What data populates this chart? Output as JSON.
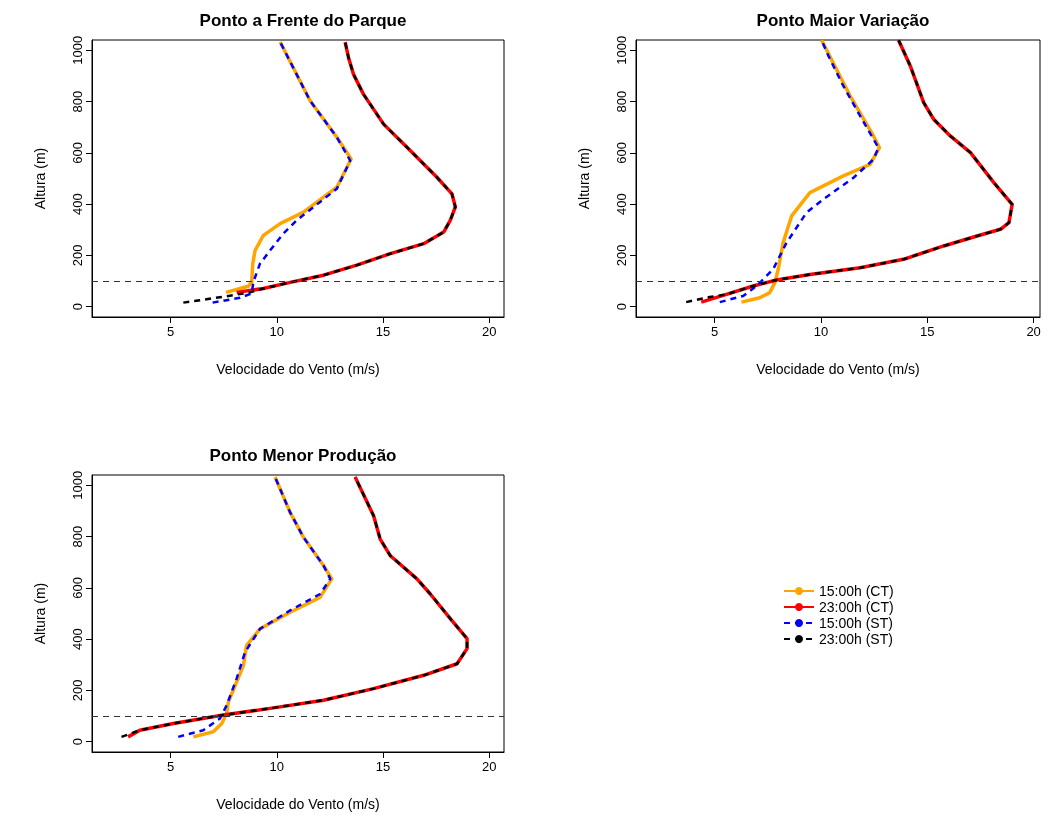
{
  "chart_data": [
    {
      "type": "line",
      "title": "Ponto a Frente do Parque",
      "xlabel": "Velocidade do Vento (m/s)",
      "ylabel": "Altura (m)",
      "xlim": [
        1.3,
        20.7
      ],
      "xticks": [
        5,
        10,
        15,
        20
      ],
      "ylim": [
        -40,
        1040
      ],
      "yticks": [
        0,
        200,
        400,
        600,
        800,
        1000
      ],
      "grid": false,
      "legend": false,
      "ref_lines": [
        {
          "axis": "y",
          "value": 100,
          "color": "#333333",
          "line_style": "dashed"
        }
      ],
      "series": [
        {
          "color": "#ffa500",
          "line_style": "solid",
          "x": [
            7.61,
            8.66,
            8.82,
            8.87,
            8.98,
            9.37,
            10.16,
            11.26,
            12.83,
            13.5,
            12.83,
            11.57,
            10.16
          ],
          "values": [
            56,
            80,
            97,
            168,
            220,
            278,
            324,
            369,
            466,
            576,
            661,
            803,
            1032
          ]
        },
        {
          "color": "#ff0000",
          "line_style": "solid",
          "x": [
            8.11,
            9.37,
            10.63,
            12.2,
            13.77,
            15.35,
            16.92,
            17.86,
            18.17,
            18.41,
            18.25,
            17.54,
            16.13,
            15.03,
            14.08,
            13.61,
            13.38,
            13.22
          ],
          "values": [
            56,
            71,
            95,
            123,
            162,
            207,
            246,
            291,
            337,
            389,
            440,
            505,
            622,
            712,
            829,
            907,
            971,
            1032
          ]
        },
        {
          "color": "#0000ff",
          "line_style": "dashed",
          "x": [
            6.98,
            8.27,
            8.82,
            8.9,
            9.21,
            9.69,
            10.31,
            10.94,
            12.83,
            13.46,
            12.83,
            11.57,
            10.16
          ],
          "values": [
            16,
            35,
            52,
            97,
            168,
            220,
            285,
            337,
            460,
            570,
            661,
            803,
            1032
          ]
        },
        {
          "color": "#000000",
          "line_style": "dashed",
          "x": [
            5.6,
            7.48,
            8.74,
            9.37,
            10.63,
            12.2,
            13.77,
            15.35,
            16.92,
            17.86,
            18.17,
            18.41,
            18.25,
            17.54,
            16.13,
            15.03,
            14.08,
            13.61,
            13.38,
            13.22
          ],
          "values": [
            16,
            39,
            56,
            71,
            95,
            123,
            162,
            207,
            246,
            291,
            337,
            389,
            440,
            505,
            622,
            712,
            829,
            907,
            971,
            1032
          ]
        }
      ]
    },
    {
      "type": "line",
      "title": "Ponto Maior Variação",
      "xlabel": "Velocidade do Vento (m/s)",
      "ylabel": "Altura (m)",
      "xlim": [
        1.3,
        20.3
      ],
      "xticks": [
        5,
        10,
        15,
        20
      ],
      "ylim": [
        -40,
        1040
      ],
      "yticks": [
        0,
        200,
        400,
        600,
        800,
        1000
      ],
      "grid": false,
      "legend": false,
      "ref_lines": [
        {
          "axis": "y",
          "value": 100,
          "color": "#333333",
          "line_style": "dashed"
        }
      ],
      "series": [
        {
          "color": "#ffa500",
          "line_style": "solid",
          "x": [
            6.26,
            7.12,
            7.59,
            7.83,
            7.99,
            8.22,
            8.62,
            9.48,
            11.05,
            12.31,
            12.75,
            12.47,
            11.37,
            10.03
          ],
          "values": [
            18,
            35,
            55,
            94,
            146,
            250,
            354,
            445,
            510,
            555,
            620,
            666,
            822,
            1039
          ]
        },
        {
          "color": "#ff0000",
          "line_style": "solid",
          "x": [
            4.37,
            5.55,
            6.81,
            7.91,
            9.48,
            11.84,
            13.88,
            15.77,
            17.34,
            18.44,
            18.84,
            18.99,
            18.13,
            17.03,
            16.08,
            15.3,
            14.83,
            14.2,
            13.65
          ],
          "values": [
            18,
            48,
            81,
            104,
            126,
            152,
            185,
            237,
            276,
            302,
            328,
            399,
            484,
            601,
            666,
            731,
            796,
            939,
            1039
          ]
        },
        {
          "color": "#0000ff",
          "line_style": "dashed",
          "x": [
            5.24,
            6.34,
            6.97,
            7.75,
            8.38,
            9.32,
            10.11,
            11.53,
            12.47,
            12.7,
            11.84,
            11.05,
            10.35,
            10.03
          ],
          "values": [
            18,
            42,
            81,
            146,
            250,
            367,
            419,
            503,
            575,
            620,
            744,
            861,
            978,
            1039
          ]
        },
        {
          "color": "#000000",
          "line_style": "dashed",
          "x": [
            3.66,
            4.76,
            5.55,
            6.81,
            7.91,
            9.48,
            11.84,
            13.88,
            15.77,
            17.34,
            18.44,
            18.84,
            18.99,
            18.13,
            17.03,
            16.08,
            15.3,
            14.83,
            14.2,
            13.65
          ],
          "values": [
            18,
            38,
            48,
            81,
            104,
            126,
            152,
            185,
            237,
            276,
            302,
            328,
            399,
            484,
            601,
            666,
            731,
            796,
            939,
            1039
          ]
        }
      ]
    },
    {
      "type": "line",
      "title": "Ponto Menor Produção",
      "xlabel": "Velocidade do Vento (m/s)",
      "ylabel": "Altura (m)",
      "xlim": [
        1.3,
        20.7
      ],
      "xticks": [
        5,
        10,
        15,
        20
      ],
      "ylim": [
        -40,
        1040
      ],
      "yticks": [
        0,
        200,
        400,
        600,
        800,
        1000
      ],
      "grid": false,
      "legend": "right",
      "ref_lines": [
        {
          "axis": "y",
          "value": 100,
          "color": "#333333",
          "line_style": "dashed"
        }
      ],
      "series": [
        {
          "name": "15:00h (CT)",
          "color": "#ffa500",
          "line_style": "solid",
          "x": [
            6.07,
            7.01,
            7.41,
            7.64,
            7.72,
            8.11,
            8.43,
            8.58,
            9.21,
            10.63,
            12.04,
            12.59,
            12.2,
            11.26,
            10.63,
            9.92
          ],
          "values": [
            19,
            39,
            71,
            110,
            155,
            233,
            298,
            376,
            440,
            505,
            563,
            635,
            687,
            797,
            894,
            1032
          ]
        },
        {
          "name": "23:00h (CT)",
          "color": "#ff0000",
          "line_style": "solid",
          "x": [
            3.0,
            3.55,
            5.13,
            7.48,
            9.84,
            12.2,
            14.56,
            16.92,
            18.49,
            18.96,
            18.96,
            18.18,
            17.23,
            16.6,
            15.35,
            14.87,
            14.56,
            13.69
          ],
          "values": [
            19,
            45,
            71,
            104,
            132,
            162,
            207,
            259,
            304,
            363,
            402,
            479,
            576,
            635,
            725,
            790,
            881,
            1032
          ]
        },
        {
          "name": "15:00h (ST)",
          "color": "#0000ff",
          "line_style": "dashed",
          "x": [
            5.36,
            6.54,
            7.33,
            7.64,
            8.11,
            8.51,
            9.21,
            10.63,
            12.04,
            12.52,
            12.2,
            11.26,
            10.63,
            9.92
          ],
          "values": [
            19,
            45,
            91,
            142,
            246,
            350,
            440,
            512,
            576,
            635,
            687,
            797,
            894,
            1032
          ]
        },
        {
          "name": "23:00h (ST)",
          "color": "#000000",
          "line_style": "dashed",
          "x": [
            2.69,
            3.55,
            5.13,
            7.48,
            9.84,
            12.2,
            14.56,
            16.92,
            18.49,
            18.96,
            18.96,
            18.18,
            17.23,
            16.6,
            15.35,
            14.87,
            14.56,
            13.69
          ],
          "values": [
            19,
            45,
            71,
            104,
            132,
            162,
            207,
            259,
            304,
            363,
            402,
            479,
            576,
            635,
            725,
            790,
            881,
            1032
          ]
        }
      ]
    }
  ]
}
